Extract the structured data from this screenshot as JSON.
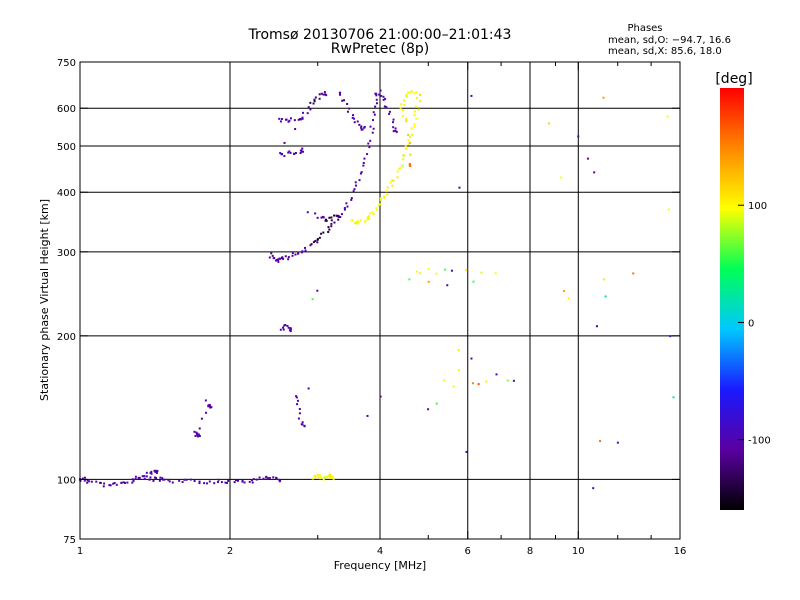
{
  "chart_data": {
    "type": "scatter",
    "title": "Tromsø 20130706 21:00:00–21:01:43",
    "subtitle": "RwPretec (8p)",
    "info": {
      "header": "Phases",
      "line1": "mean, sd,O: −94.7, 16.6",
      "line2": "mean, sd,X:  85.6, 18.0"
    },
    "xlabel": "Frequency [MHz]",
    "ylabel": "Stationary phase Virtual Height [km]",
    "x_scale": "log",
    "y_scale": "log",
    "xlim": [
      1,
      16
    ],
    "ylim": [
      75,
      750
    ],
    "x_ticks": [
      1,
      2,
      4,
      6,
      8,
      10,
      16
    ],
    "x_minor_ticks": [
      3,
      5,
      7,
      9,
      12,
      14
    ],
    "x_gridlines": [
      2,
      4,
      6,
      8,
      10
    ],
    "y_ticks": [
      75,
      100,
      200,
      300,
      400,
      500,
      600,
      750
    ],
    "y_gridlines": [
      100,
      200,
      300,
      400,
      500,
      600
    ],
    "grid": true,
    "colorbar": {
      "label": "[deg]",
      "min": -160,
      "max": 200,
      "ticks": [
        100,
        0,
        -100
      ],
      "colormap": "rainbow",
      "stops": [
        "#000000",
        "#5a00a0",
        "#1a1aff",
        "#00c8ff",
        "#00ff55",
        "#ffff00",
        "#ff8800",
        "#ff0000"
      ]
    },
    "series": [
      {
        "role": "E/low traces",
        "points": [
          [
            1.0,
            100,
            -100
          ],
          [
            1.02,
            100,
            -105
          ],
          [
            1.05,
            99,
            -100
          ],
          [
            1.1,
            98,
            -110
          ],
          [
            1.15,
            97,
            -100
          ],
          [
            1.2,
            98,
            -105
          ],
          [
            1.25,
            99,
            -100
          ],
          [
            1.3,
            100,
            -110
          ],
          [
            1.35,
            101,
            -100
          ],
          [
            1.4,
            100,
            -105
          ],
          [
            1.45,
            100,
            -100
          ],
          [
            1.5,
            99,
            -110
          ],
          [
            1.6,
            99,
            -100
          ],
          [
            1.7,
            99,
            -105
          ],
          [
            1.8,
            99,
            -100
          ],
          [
            1.9,
            99,
            -100
          ],
          [
            2.0,
            99,
            -110
          ],
          [
            2.1,
            99,
            -100
          ],
          [
            2.2,
            99,
            -105
          ],
          [
            2.3,
            100,
            -100
          ],
          [
            2.4,
            101,
            -110
          ],
          [
            2.5,
            100,
            -100
          ],
          [
            1.3,
            101,
            -105
          ],
          [
            1.38,
            103,
            -100
          ],
          [
            1.42,
            104,
            -110
          ],
          [
            1.7,
            125,
            -105
          ],
          [
            1.72,
            124,
            -100
          ],
          [
            1.74,
            123,
            -110
          ],
          [
            1.8,
            145,
            -100
          ],
          [
            1.82,
            142,
            -105
          ],
          [
            2.55,
            205,
            -100
          ],
          [
            2.6,
            210,
            -110
          ],
          [
            2.65,
            206,
            -100
          ],
          [
            2.7,
            150,
            -100
          ],
          [
            2.75,
            140,
            -105
          ],
          [
            2.8,
            130,
            -100
          ],
          [
            2.95,
            101,
            95
          ],
          [
            3.0,
            102,
            100
          ],
          [
            3.05,
            101,
            100
          ],
          [
            3.1,
            100,
            95
          ],
          [
            3.15,
            102,
            105
          ],
          [
            3.2,
            101,
            100
          ]
        ]
      },
      {
        "role": "F2 O-mode traces",
        "points": [
          [
            2.4,
            295,
            -110
          ],
          [
            2.45,
            290,
            -100
          ],
          [
            2.5,
            288,
            -105
          ],
          [
            2.55,
            289,
            -110
          ],
          [
            2.6,
            292,
            -100
          ],
          [
            2.7,
            297,
            -110
          ],
          [
            2.8,
            303,
            -100
          ],
          [
            2.9,
            310,
            -130
          ],
          [
            3.0,
            318,
            -140
          ],
          [
            3.1,
            328,
            -140
          ],
          [
            3.2,
            338,
            -130
          ],
          [
            3.3,
            352,
            -110
          ],
          [
            3.4,
            370,
            -105
          ],
          [
            3.5,
            392,
            -110
          ],
          [
            3.6,
            418,
            -100
          ],
          [
            3.7,
            452,
            -105
          ],
          [
            3.8,
            495,
            -110
          ],
          [
            3.85,
            540,
            -100
          ],
          [
            3.9,
            590,
            -110
          ],
          [
            3.95,
            640,
            -100
          ],
          [
            3.0,
            355,
            -110
          ],
          [
            3.1,
            350,
            -140
          ],
          [
            3.2,
            352,
            -140
          ],
          [
            3.3,
            358,
            -120
          ],
          [
            2.5,
            570,
            -105
          ],
          [
            2.6,
            565,
            -100
          ],
          [
            2.7,
            570,
            -110
          ],
          [
            2.8,
            575,
            -100
          ],
          [
            2.9,
            600,
            -110
          ],
          [
            2.5,
            482,
            -105
          ],
          [
            2.6,
            480,
            -100
          ],
          [
            2.7,
            485,
            -110
          ],
          [
            2.8,
            490,
            -100
          ],
          [
            3.3,
            650,
            -110
          ],
          [
            3.4,
            620,
            -120
          ],
          [
            3.5,
            580,
            -100
          ],
          [
            3.6,
            560,
            -110
          ],
          [
            3.7,
            545,
            -100
          ],
          [
            2.9,
            610,
            -130
          ],
          [
            3.0,
            630,
            -120
          ],
          [
            3.1,
            645,
            -110
          ],
          [
            4.0,
            650,
            -100
          ],
          [
            4.1,
            620,
            -110
          ],
          [
            4.2,
            580,
            -100
          ],
          [
            4.3,
            540,
            -110
          ]
        ]
      },
      {
        "role": "F2 X-mode traces",
        "points": [
          [
            3.5,
            350,
            95
          ],
          [
            3.6,
            345,
            100
          ],
          [
            3.7,
            348,
            95
          ],
          [
            3.8,
            355,
            105
          ],
          [
            3.9,
            365,
            100
          ],
          [
            4.0,
            378,
            95
          ],
          [
            4.1,
            392,
            100
          ],
          [
            4.2,
            410,
            105
          ],
          [
            4.3,
            432,
            100
          ],
          [
            4.4,
            458,
            95
          ],
          [
            4.5,
            490,
            100
          ],
          [
            4.6,
            520,
            95
          ],
          [
            4.7,
            560,
            100
          ],
          [
            4.75,
            600,
            95
          ],
          [
            4.8,
            640,
            105
          ],
          [
            4.6,
            650,
            100
          ],
          [
            4.5,
            630,
            95
          ],
          [
            4.4,
            600,
            100
          ],
          [
            4.55,
            560,
            120
          ],
          [
            4.6,
            455,
            160
          ]
        ]
      },
      {
        "role": "scattered returns",
        "points": [
          [
            4.7,
            275,
            100
          ],
          [
            4.8,
            272,
            95
          ],
          [
            5.0,
            276,
            100
          ],
          [
            5.2,
            270,
            95
          ],
          [
            5.4,
            274,
            60
          ],
          [
            5.6,
            272,
            -100
          ],
          [
            6.0,
            275,
            100
          ],
          [
            6.4,
            274,
            95
          ],
          [
            6.8,
            272,
            90
          ],
          [
            4.6,
            262,
            60
          ],
          [
            5.0,
            258,
            140
          ],
          [
            5.5,
            256,
            -110
          ],
          [
            6.2,
            258,
            60
          ],
          [
            5.4,
            160,
            90
          ],
          [
            5.6,
            158,
            100
          ],
          [
            6.2,
            158,
            150
          ],
          [
            6.3,
            157,
            170
          ],
          [
            6.5,
            159,
            100
          ],
          [
            5.8,
            170,
            100
          ],
          [
            6.8,
            165,
            -100
          ],
          [
            7.2,
            160,
            80
          ],
          [
            7.4,
            162,
            -100
          ],
          [
            5.2,
            145,
            60
          ],
          [
            5.0,
            140,
            -100
          ],
          [
            5.7,
            185,
            100
          ],
          [
            6.1,
            178,
            -100
          ],
          [
            10.0,
            520,
            -100
          ],
          [
            10.5,
            470,
            -110
          ],
          [
            10.8,
            440,
            -100
          ],
          [
            11.0,
            210,
            -110
          ],
          [
            11.0,
            120,
            150
          ],
          [
            10.8,
            95,
            -100
          ],
          [
            11.4,
            240,
            20
          ],
          [
            11.2,
            265,
            90
          ],
          [
            13.0,
            268,
            150
          ],
          [
            15.2,
            370,
            100
          ],
          [
            15.3,
            200,
            -100
          ],
          [
            15.1,
            580,
            100
          ],
          [
            15.4,
            150,
            30
          ],
          [
            11.3,
            630,
            150
          ],
          [
            9.2,
            430,
            95
          ],
          [
            9.3,
            250,
            140
          ],
          [
            8.8,
            560,
            110
          ],
          [
            9.5,
            240,
            100
          ],
          [
            12.0,
            120,
            -100
          ],
          [
            6.1,
            640,
            -100
          ],
          [
            5.8,
            405,
            -110
          ],
          [
            6.0,
            115,
            -100
          ],
          [
            4.0,
            150,
            -110
          ],
          [
            3.8,
            135,
            -100
          ],
          [
            2.9,
            155,
            -100
          ],
          [
            2.85,
            360,
            -100
          ],
          [
            2.95,
            360,
            -105
          ],
          [
            3.0,
            250,
            -100
          ],
          [
            2.95,
            240,
            60
          ]
        ]
      }
    ]
  }
}
